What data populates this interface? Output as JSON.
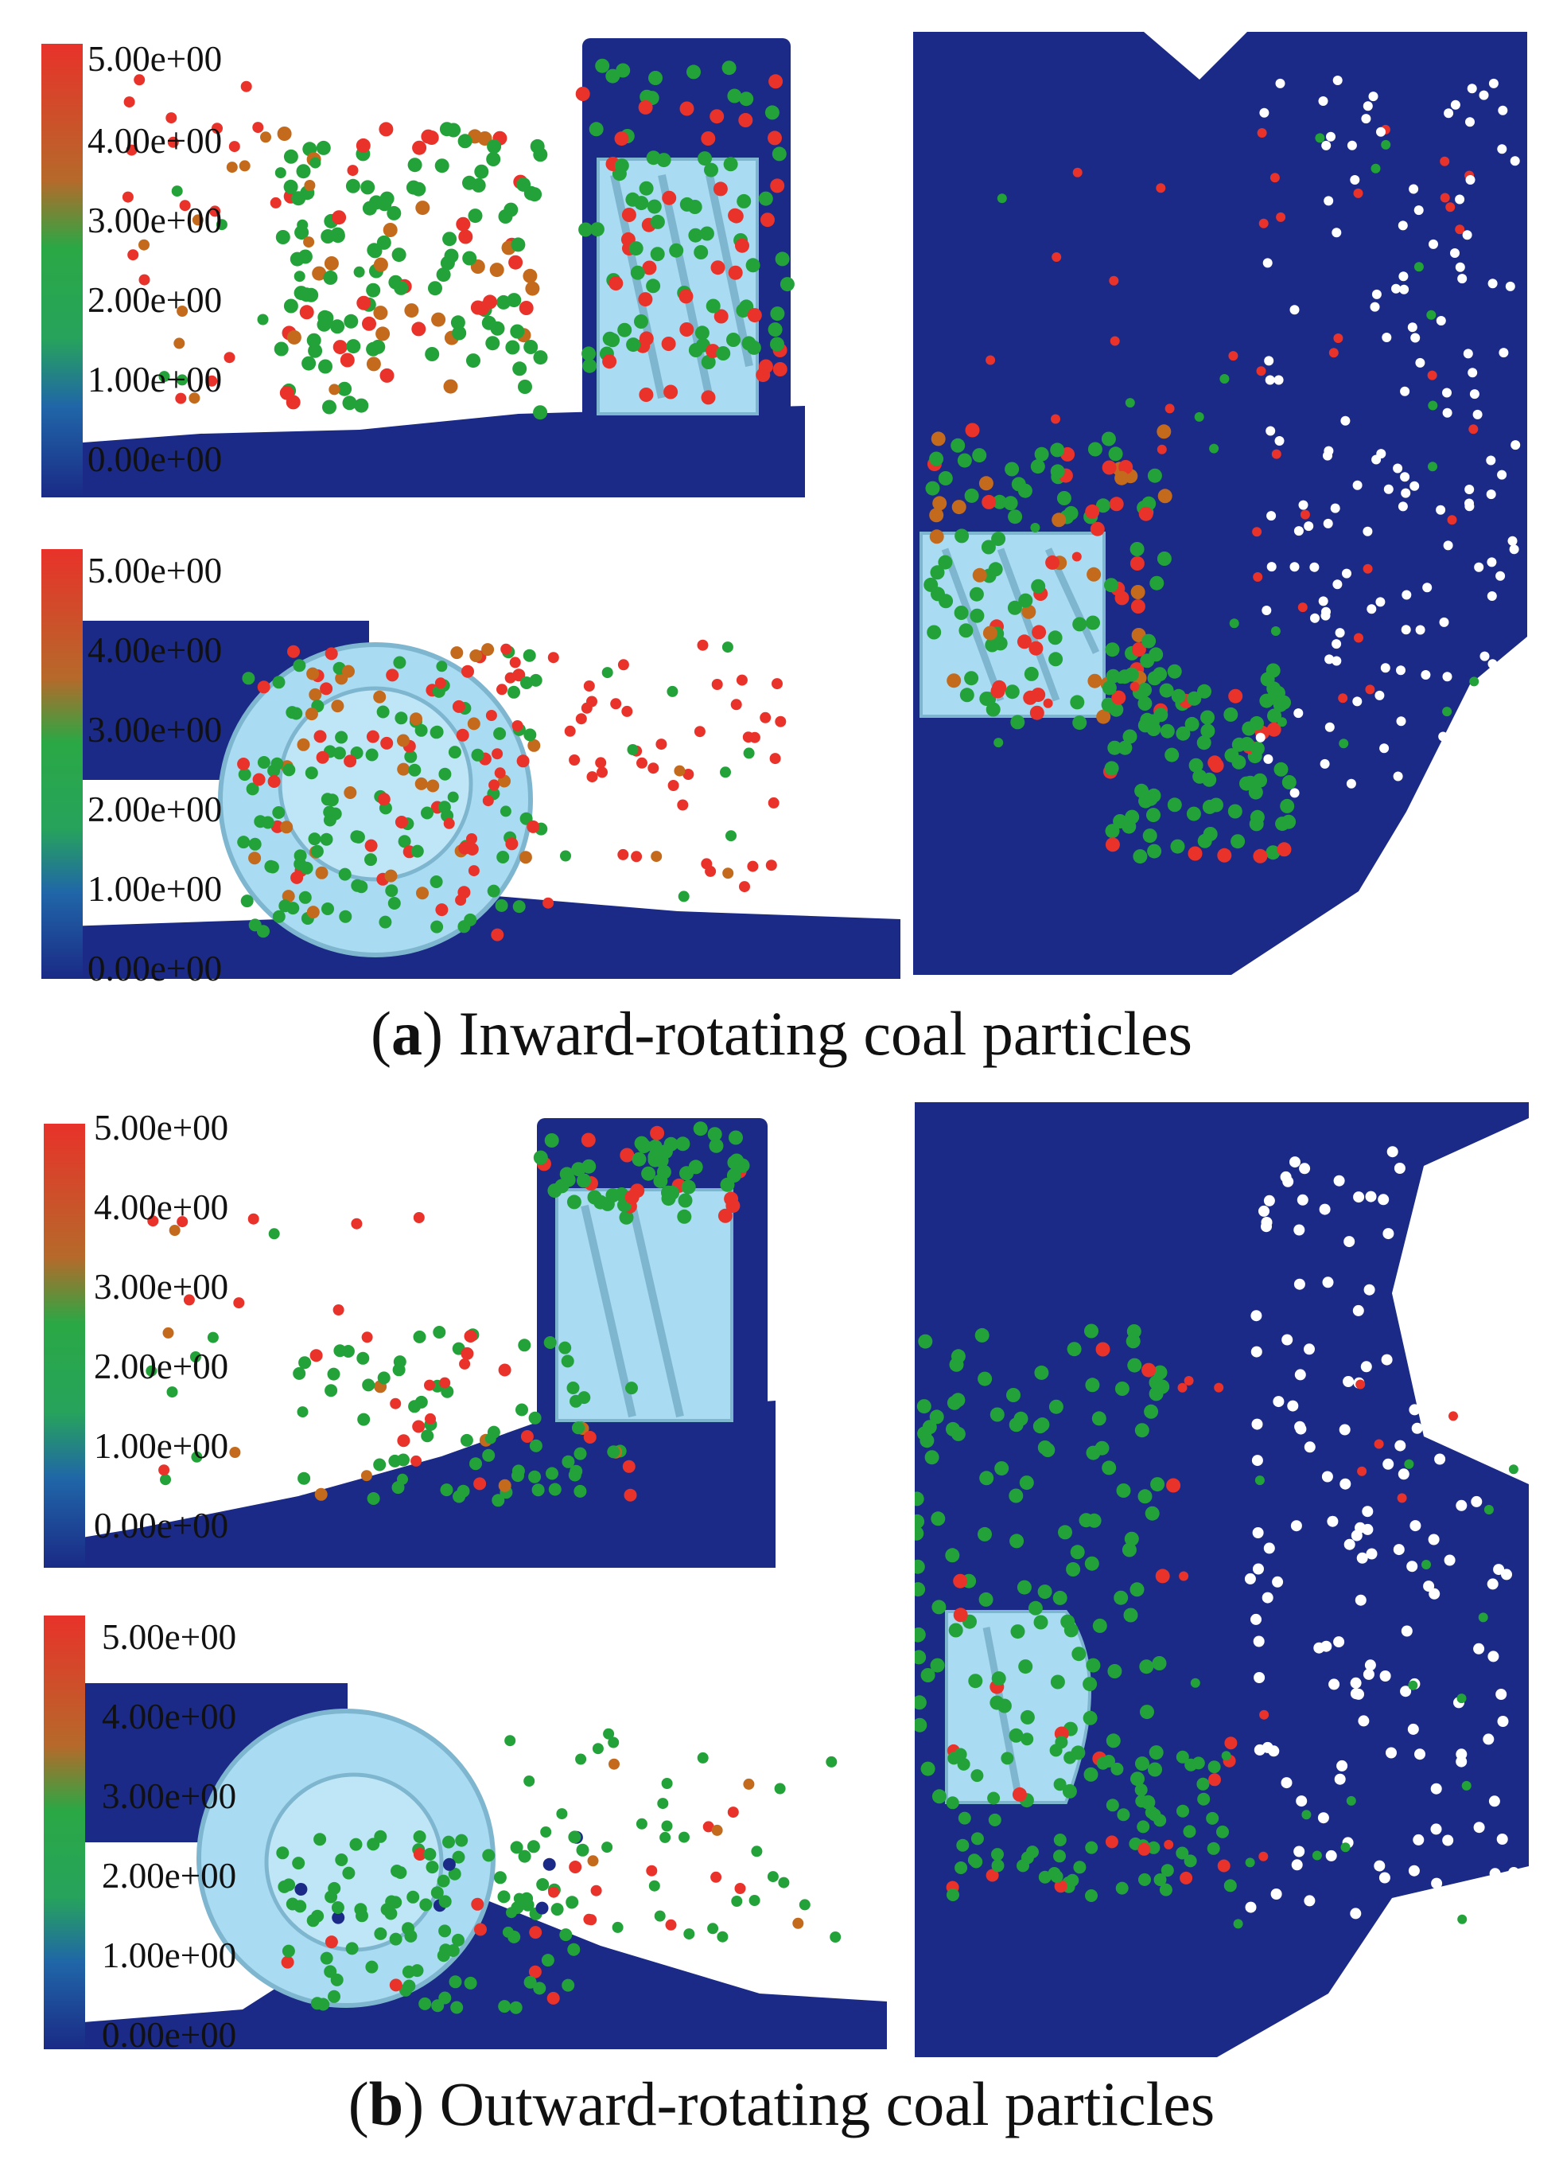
{
  "figure": {
    "panels": [
      {
        "id": "a-top",
        "view": "side",
        "colorbar_ticks": [
          "5.00e+00",
          "4.00e+00",
          "3.00e+00",
          "2.00e+00",
          "1.00e+00",
          "0.00e+00"
        ]
      },
      {
        "id": "a-bottom",
        "view": "front",
        "colorbar_ticks": [
          "5.00e+00",
          "4.00e+00",
          "3.00e+00",
          "2.00e+00",
          "1.00e+00",
          "0.00e+00"
        ]
      },
      {
        "id": "a-right",
        "view": "top"
      },
      {
        "id": "b-top",
        "view": "side",
        "colorbar_ticks": [
          "5.00e+00",
          "4.00e+00",
          "3.00e+00",
          "2.00e+00",
          "1.00e+00",
          "0.00e+00"
        ]
      },
      {
        "id": "b-bottom",
        "view": "front",
        "colorbar_ticks": [
          "5.00e+00",
          "4.00e+00",
          "3.00e+00",
          "2.00e+00",
          "1.00e+00",
          "0.00e+00"
        ]
      },
      {
        "id": "b-right",
        "view": "top"
      }
    ],
    "captions": {
      "a": {
        "letter": "a",
        "text": " Inward-rotating coal particles"
      },
      "b": {
        "letter": "b",
        "text": " Outward-rotating coal particles"
      }
    },
    "colors": {
      "bed": "#1a2a86",
      "drum": "#a9dcf2",
      "drum_edge": "#7fb6cf",
      "red": "#e8322a",
      "orange": "#c46a1c",
      "green": "#23a23a",
      "scale": [
        "#e8322a",
        "#b6692a",
        "#2aa845",
        "#27a35c",
        "#2066a8",
        "#1a2a86"
      ]
    }
  }
}
